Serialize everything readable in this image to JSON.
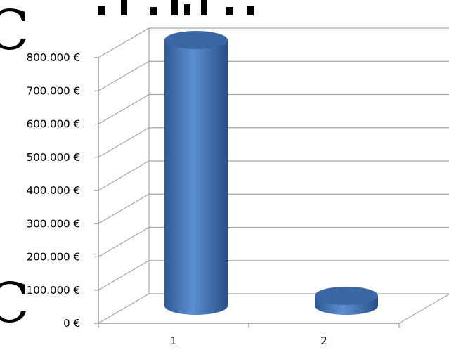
{
  "chart_data": {
    "type": "bar",
    "style": "3d-cylinder",
    "categories": [
      "1",
      "2"
    ],
    "values": [
      800000,
      30000
    ],
    "ylim": [
      0,
      800000
    ],
    "y_tick_labels": [
      "0 €",
      "100.000 €",
      "200.000 €",
      "300.000 €",
      "400.000 €",
      "500.000 €",
      "600.000 €",
      "700.000 €",
      "800.000 €"
    ],
    "grid": true,
    "legend": "none",
    "colors": {
      "bar": "#4f81bd",
      "bar_dark": "#2a5183",
      "bar_top": "#3a66a3",
      "grid": "#a6a6a6",
      "axis": "#808080"
    }
  }
}
